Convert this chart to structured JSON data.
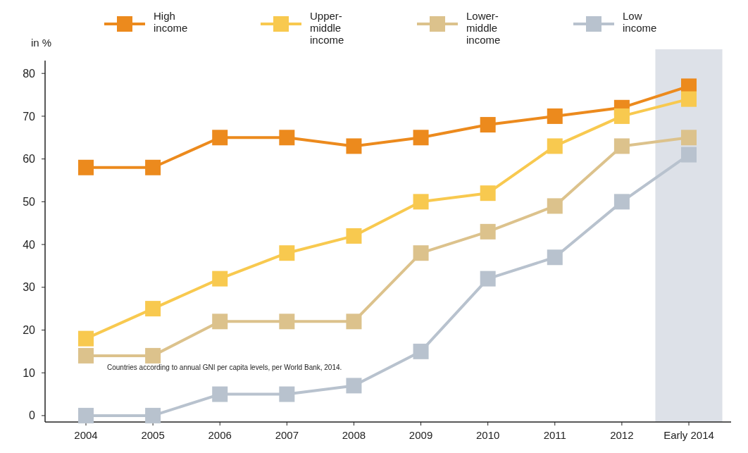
{
  "chart_data": {
    "type": "line",
    "ylabel": "in %",
    "categories": [
      "2004",
      "2005",
      "2006",
      "2007",
      "2008",
      "2009",
      "2010",
      "2011",
      "2012",
      "Early 2014"
    ],
    "series": [
      {
        "name": "High income",
        "color": "#ec8a1d",
        "values": [
          58,
          58,
          65,
          65,
          63,
          65,
          68,
          70,
          72,
          77
        ]
      },
      {
        "name": "Upper-middle income",
        "color": "#f8c94f",
        "values": [
          18,
          25,
          32,
          38,
          42,
          50,
          52,
          63,
          70,
          74
        ]
      },
      {
        "name": "Lower-middle income",
        "color": "#dcc28c",
        "values": [
          14,
          14,
          22,
          22,
          22,
          38,
          43,
          49,
          63,
          65
        ]
      },
      {
        "name": "Low income",
        "color": "#b8c2ce",
        "values": [
          0,
          0,
          5,
          5,
          7,
          15,
          32,
          37,
          50,
          61
        ]
      }
    ],
    "ylim": [
      -1.5,
      83
    ],
    "yticks": [
      0,
      10,
      20,
      30,
      40,
      50,
      60,
      70,
      80
    ],
    "bands": [
      {
        "axis": "x",
        "from": "Early 2014",
        "to": "Early 2014",
        "color": "#dde1e8"
      }
    ],
    "annotations": [
      "Countries according to annual GNI per capita levels, per World Bank, 2014."
    ],
    "legend": "top",
    "marker": "square",
    "grid": false,
    "line_style": "solid"
  }
}
